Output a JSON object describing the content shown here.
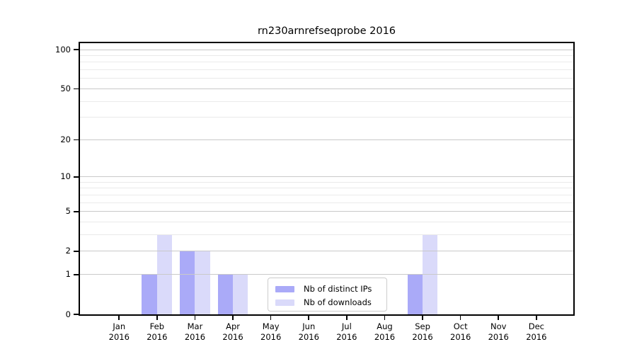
{
  "chart_data": {
    "type": "bar",
    "title": "rn230arnrefseqprobe 2016",
    "categories": [
      "Jan",
      "Feb",
      "Mar",
      "Apr",
      "May",
      "Jun",
      "Jul",
      "Aug",
      "Sep",
      "Oct",
      "Nov",
      "Dec"
    ],
    "year_label": "2016",
    "series": [
      {
        "name": "Nb of distinct IPs",
        "color": "#aaaaf8",
        "values": [
          0,
          1,
          2,
          1,
          0,
          0,
          0,
          0,
          1,
          0,
          0,
          0
        ]
      },
      {
        "name": "Nb of downloads",
        "color": "#dadafa",
        "values": [
          0,
          3,
          2,
          1,
          0,
          0,
          0,
          0,
          3,
          0,
          0,
          0
        ]
      }
    ],
    "yscale": "log1p",
    "ylim": [
      0,
      112
    ],
    "yticks": [
      0,
      1,
      2,
      5,
      10,
      20,
      50,
      100
    ],
    "minor_yticks": [
      3,
      4,
      6,
      7,
      8,
      9,
      30,
      40,
      60,
      70,
      80,
      90
    ],
    "grid": "on",
    "legend_position": "lower center",
    "colors": {
      "grid_major": "#c9c9c9",
      "grid_minor": "#eaeaea",
      "axis": "#000000",
      "legend_border": "#cccccc",
      "background": "#ffffff"
    },
    "layout": {
      "first_center_frac": 0.0793,
      "step_frac": 0.0769,
      "bar_width_frac": 0.0307
    }
  }
}
